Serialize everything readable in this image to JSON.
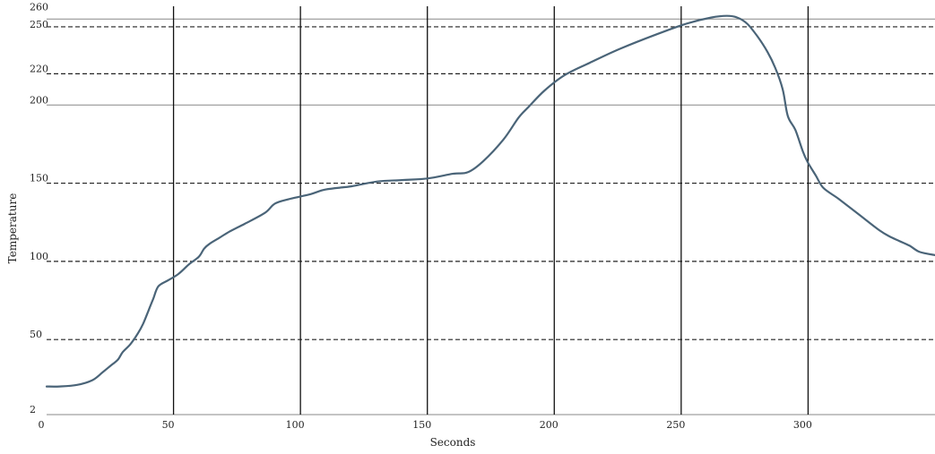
{
  "chart_data": {
    "type": "line",
    "title": "",
    "xlabel": "Seconds",
    "ylabel": "Temperature",
    "xlim": [
      0,
      350
    ],
    "ylim": [
      2,
      262
    ],
    "grid": true,
    "legend": "none",
    "x_ticks": [
      {
        "value": 0,
        "label": "0"
      },
      {
        "value": 50,
        "label": "50"
      },
      {
        "value": 100,
        "label": "100"
      },
      {
        "value": 150,
        "label": "150"
      },
      {
        "value": 200,
        "label": "200"
      },
      {
        "value": 250,
        "label": "250"
      },
      {
        "value": 300,
        "label": "300"
      }
    ],
    "y_ticks": [
      {
        "value": 2,
        "label": "2"
      },
      {
        "value": 50,
        "label": "50"
      },
      {
        "value": 100,
        "label": "100"
      },
      {
        "value": 150,
        "label": "150"
      },
      {
        "value": 200,
        "label": "200"
      },
      {
        "value": 220,
        "label": "220"
      },
      {
        "value": 250,
        "label": "250"
      },
      {
        "value": 260,
        "label": "260"
      }
    ],
    "x_gridlines": [
      50,
      100,
      150,
      200,
      250,
      300
    ],
    "y_gridlines": [
      {
        "value": 2,
        "style": "solid"
      },
      {
        "value": 50,
        "style": "dashed"
      },
      {
        "value": 100,
        "style": "dashed"
      },
      {
        "value": 150,
        "style": "dashed"
      },
      {
        "value": 200,
        "style": "solid"
      },
      {
        "value": 220,
        "style": "dashed"
      },
      {
        "value": 250,
        "style": "dashed"
      },
      {
        "value": 255,
        "style": "solid"
      }
    ],
    "colors": {
      "line": "#4a6478",
      "vertical_grid": "#111111",
      "solid_grid": "#888888",
      "dashed_grid": "#222222"
    },
    "series": [
      {
        "x": [
          0,
          5,
          12,
          18,
          22,
          25,
          28,
          30,
          33,
          36,
          38,
          40,
          42,
          44,
          48,
          52,
          56,
          60,
          62,
          64,
          68,
          72,
          78,
          86,
          90,
          96,
          104,
          110,
          120,
          130,
          140,
          150,
          160,
          166,
          172,
          180,
          186,
          190,
          196,
          204,
          214,
          226,
          240,
          252,
          262,
          268,
          272,
          276,
          280,
          284,
          287,
          290,
          292,
          295,
          298,
          300,
          303,
          306,
          312,
          320,
          328,
          332,
          336,
          340,
          344,
          350
        ],
        "y": [
          20,
          20,
          21,
          24,
          29,
          33,
          37,
          42,
          47,
          54,
          60,
          68,
          76,
          84,
          88,
          92,
          98,
          103,
          108,
          111,
          115,
          119,
          124,
          131,
          137,
          140,
          143,
          146,
          148,
          151,
          152,
          153,
          156,
          157,
          164,
          178,
          192,
          199,
          209,
          219,
          227,
          236,
          245,
          252,
          256,
          257,
          256,
          252,
          244,
          234,
          224,
          210,
          193,
          184,
          170,
          163,
          155,
          147,
          140,
          130,
          120,
          116,
          113,
          110,
          106,
          104
        ]
      }
    ]
  }
}
